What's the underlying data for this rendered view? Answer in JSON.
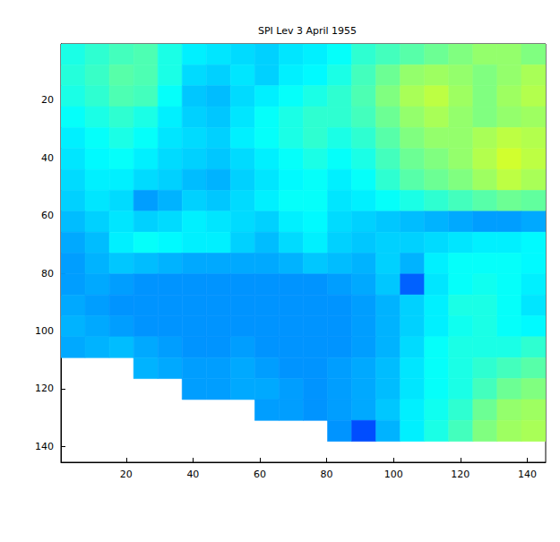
{
  "chart_data": {
    "type": "heatmap",
    "title": "SPI Lev 3 April 1955",
    "x": [
      4.125,
      11.375,
      18.625,
      25.875,
      33.125,
      40.375,
      47.625,
      54.875,
      62.125,
      69.375,
      76.625,
      83.875,
      91.125,
      98.375,
      105.625,
      112.875,
      120.125,
      127.375,
      134.625,
      141.875
    ],
    "y": [
      4.125,
      11.375,
      18.625,
      25.875,
      33.125,
      40.375,
      47.625,
      54.875,
      62.125,
      69.375,
      76.625,
      83.875,
      91.125,
      98.375,
      105.625,
      112.875,
      120.125,
      127.375,
      134.625,
      141.875
    ],
    "cells": [
      [
        0.4,
        0.42,
        0.44,
        0.45,
        0.4,
        0.36,
        0.35,
        0.34,
        0.33,
        0.35,
        0.36,
        0.38,
        0.42,
        0.44,
        0.46,
        0.48,
        0.5,
        0.52,
        0.52,
        0.5
      ],
      [
        0.41,
        0.43,
        0.46,
        0.45,
        0.4,
        0.34,
        0.33,
        0.35,
        0.33,
        0.36,
        0.37,
        0.4,
        0.44,
        0.48,
        0.52,
        0.53,
        0.52,
        0.5,
        0.52,
        0.54
      ],
      [
        0.4,
        0.42,
        0.45,
        0.44,
        0.38,
        0.32,
        0.31,
        0.34,
        0.36,
        0.38,
        0.4,
        0.42,
        0.45,
        0.5,
        0.54,
        0.56,
        0.53,
        0.5,
        0.53,
        0.55
      ],
      [
        0.38,
        0.4,
        0.42,
        0.4,
        0.36,
        0.33,
        0.32,
        0.35,
        0.38,
        0.4,
        0.42,
        0.42,
        0.44,
        0.48,
        0.52,
        0.54,
        0.52,
        0.5,
        0.52,
        0.53
      ],
      [
        0.36,
        0.38,
        0.4,
        0.38,
        0.35,
        0.34,
        0.33,
        0.36,
        0.38,
        0.4,
        0.42,
        0.4,
        0.42,
        0.46,
        0.5,
        0.52,
        0.52,
        0.54,
        0.56,
        0.55
      ],
      [
        0.35,
        0.37,
        0.38,
        0.36,
        0.34,
        0.33,
        0.32,
        0.34,
        0.36,
        0.38,
        0.4,
        0.38,
        0.4,
        0.44,
        0.48,
        0.5,
        0.52,
        0.55,
        0.58,
        0.56
      ],
      [
        0.34,
        0.36,
        0.36,
        0.34,
        0.33,
        0.31,
        0.3,
        0.33,
        0.35,
        0.37,
        0.38,
        0.36,
        0.38,
        0.42,
        0.46,
        0.48,
        0.5,
        0.53,
        0.56,
        0.54
      ],
      [
        0.33,
        0.35,
        0.34,
        0.28,
        0.3,
        0.33,
        0.32,
        0.34,
        0.36,
        0.38,
        0.38,
        0.35,
        0.36,
        0.38,
        0.4,
        0.42,
        0.44,
        0.46,
        0.48,
        0.47
      ],
      [
        0.31,
        0.33,
        0.35,
        0.33,
        0.34,
        0.36,
        0.35,
        0.34,
        0.33,
        0.36,
        0.37,
        0.34,
        0.33,
        0.32,
        0.31,
        0.3,
        0.29,
        0.28,
        0.28,
        0.29
      ],
      [
        0.29,
        0.31,
        0.36,
        0.38,
        0.37,
        0.36,
        0.36,
        0.33,
        0.31,
        0.34,
        0.36,
        0.33,
        0.32,
        0.33,
        0.33,
        0.34,
        0.35,
        0.36,
        0.36,
        0.37
      ],
      [
        0.28,
        0.3,
        0.32,
        0.31,
        0.3,
        0.29,
        0.29,
        0.29,
        0.29,
        0.3,
        0.32,
        0.31,
        0.3,
        0.33,
        0.3,
        0.36,
        0.38,
        0.38,
        0.38,
        0.37
      ],
      [
        0.28,
        0.29,
        0.28,
        0.27,
        0.27,
        0.27,
        0.27,
        0.27,
        0.27,
        0.27,
        0.27,
        0.28,
        0.29,
        0.32,
        0.22,
        0.35,
        0.38,
        0.39,
        0.38,
        0.36
      ],
      [
        0.29,
        0.28,
        0.27,
        0.27,
        0.27,
        0.27,
        0.27,
        0.27,
        0.27,
        0.27,
        0.27,
        0.27,
        0.28,
        0.3,
        0.33,
        0.36,
        0.4,
        0.4,
        0.38,
        0.35
      ],
      [
        0.3,
        0.29,
        0.28,
        0.27,
        0.27,
        0.27,
        0.27,
        0.27,
        0.27,
        0.27,
        0.27,
        0.27,
        0.28,
        0.3,
        0.33,
        0.36,
        0.39,
        0.4,
        0.38,
        0.37
      ],
      [
        0.29,
        0.3,
        0.31,
        0.29,
        0.28,
        0.27,
        0.27,
        0.28,
        0.27,
        0.27,
        0.27,
        0.27,
        0.28,
        0.3,
        0.34,
        0.38,
        0.4,
        0.4,
        0.4,
        0.42
      ],
      [
        null,
        null,
        null,
        0.3,
        0.29,
        0.28,
        0.28,
        0.29,
        0.28,
        0.27,
        0.27,
        0.28,
        0.29,
        0.31,
        0.35,
        0.38,
        0.4,
        0.42,
        0.44,
        0.46
      ],
      [
        null,
        null,
        null,
        null,
        null,
        0.28,
        0.28,
        0.29,
        0.29,
        0.28,
        0.27,
        0.28,
        0.29,
        0.31,
        0.35,
        0.38,
        0.4,
        0.44,
        0.48,
        0.5
      ],
      [
        null,
        null,
        null,
        null,
        null,
        null,
        null,
        null,
        0.28,
        0.28,
        0.27,
        0.28,
        0.29,
        0.32,
        0.36,
        0.39,
        0.42,
        0.48,
        0.52,
        0.53
      ],
      [
        null,
        null,
        null,
        null,
        null,
        null,
        null,
        null,
        null,
        null,
        null,
        0.27,
        0.2,
        0.3,
        0.36,
        0.4,
        0.44,
        0.5,
        0.53,
        0.54
      ],
      [
        null,
        null,
        null,
        null,
        null,
        null,
        null,
        null,
        null,
        null,
        null,
        null,
        null,
        null,
        null,
        null,
        null,
        null,
        null,
        null
      ]
    ],
    "crange": [
      0,
      1
    ],
    "xlim": [
      0.5,
      145.5
    ],
    "ylim": [
      0.5,
      145.5
    ],
    "xticks": [
      20,
      40,
      60,
      80,
      100,
      120,
      140
    ],
    "yticks": [
      20,
      40,
      60,
      80,
      100,
      120,
      140
    ]
  }
}
